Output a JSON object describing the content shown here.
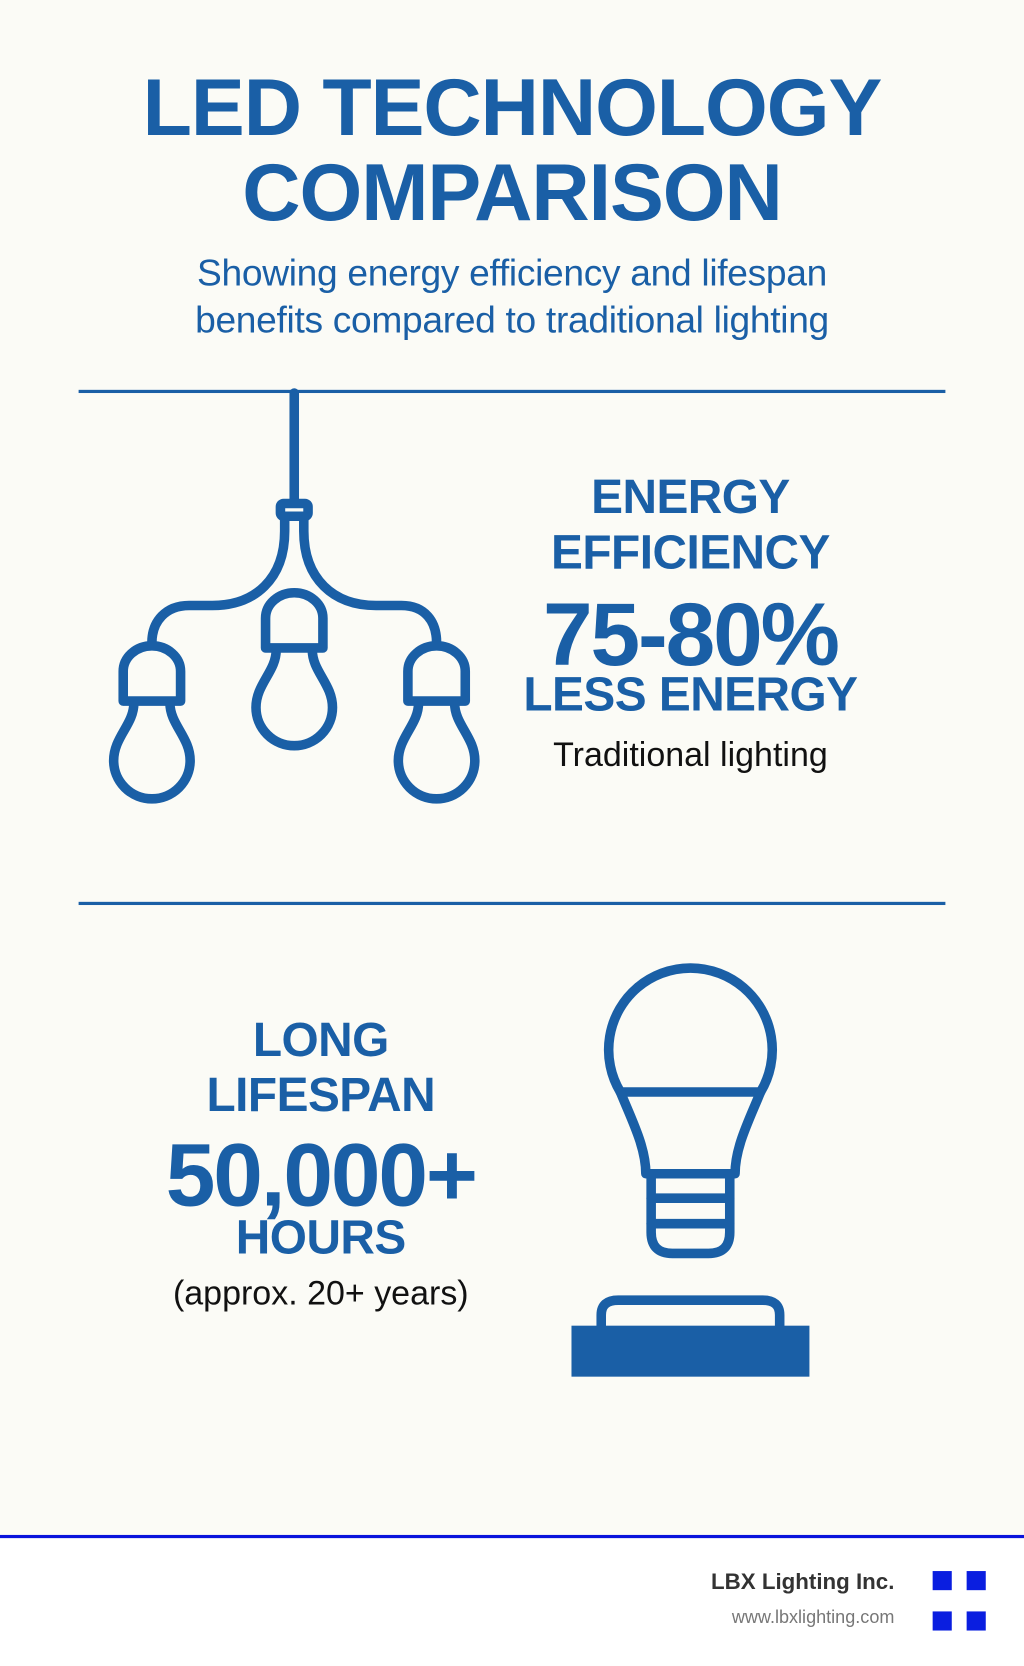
{
  "header": {
    "title_line1": "LED TECHNOLOGY",
    "title_line2": "COMPARISON",
    "subtitle_line1": "Showing energy efficiency and lifespan",
    "subtitle_line2": "benefits compared to traditional lighting"
  },
  "energy": {
    "heading_line1": "ENERGY",
    "heading_line2": "EFFICIENCY",
    "value": "75-80%",
    "unit": "LESS ENERGY",
    "note": "Traditional lighting",
    "icon": "chandelier-bulbs-icon"
  },
  "lifespan": {
    "heading_line1": "LONG",
    "heading_line2": "LIFESPAN",
    "value": "50,000+",
    "unit": "HOURS",
    "note": "(approx. 20+ years)",
    "icon": "led-bulb-icon"
  },
  "footer": {
    "company": "LBX Lighting Inc.",
    "website": "www.lbxlighting.com",
    "logo": "four-squares-logo"
  },
  "colors": {
    "primary": "#1a5fa6",
    "accent": "#0a1ee0",
    "background": "#fbfbf6"
  }
}
